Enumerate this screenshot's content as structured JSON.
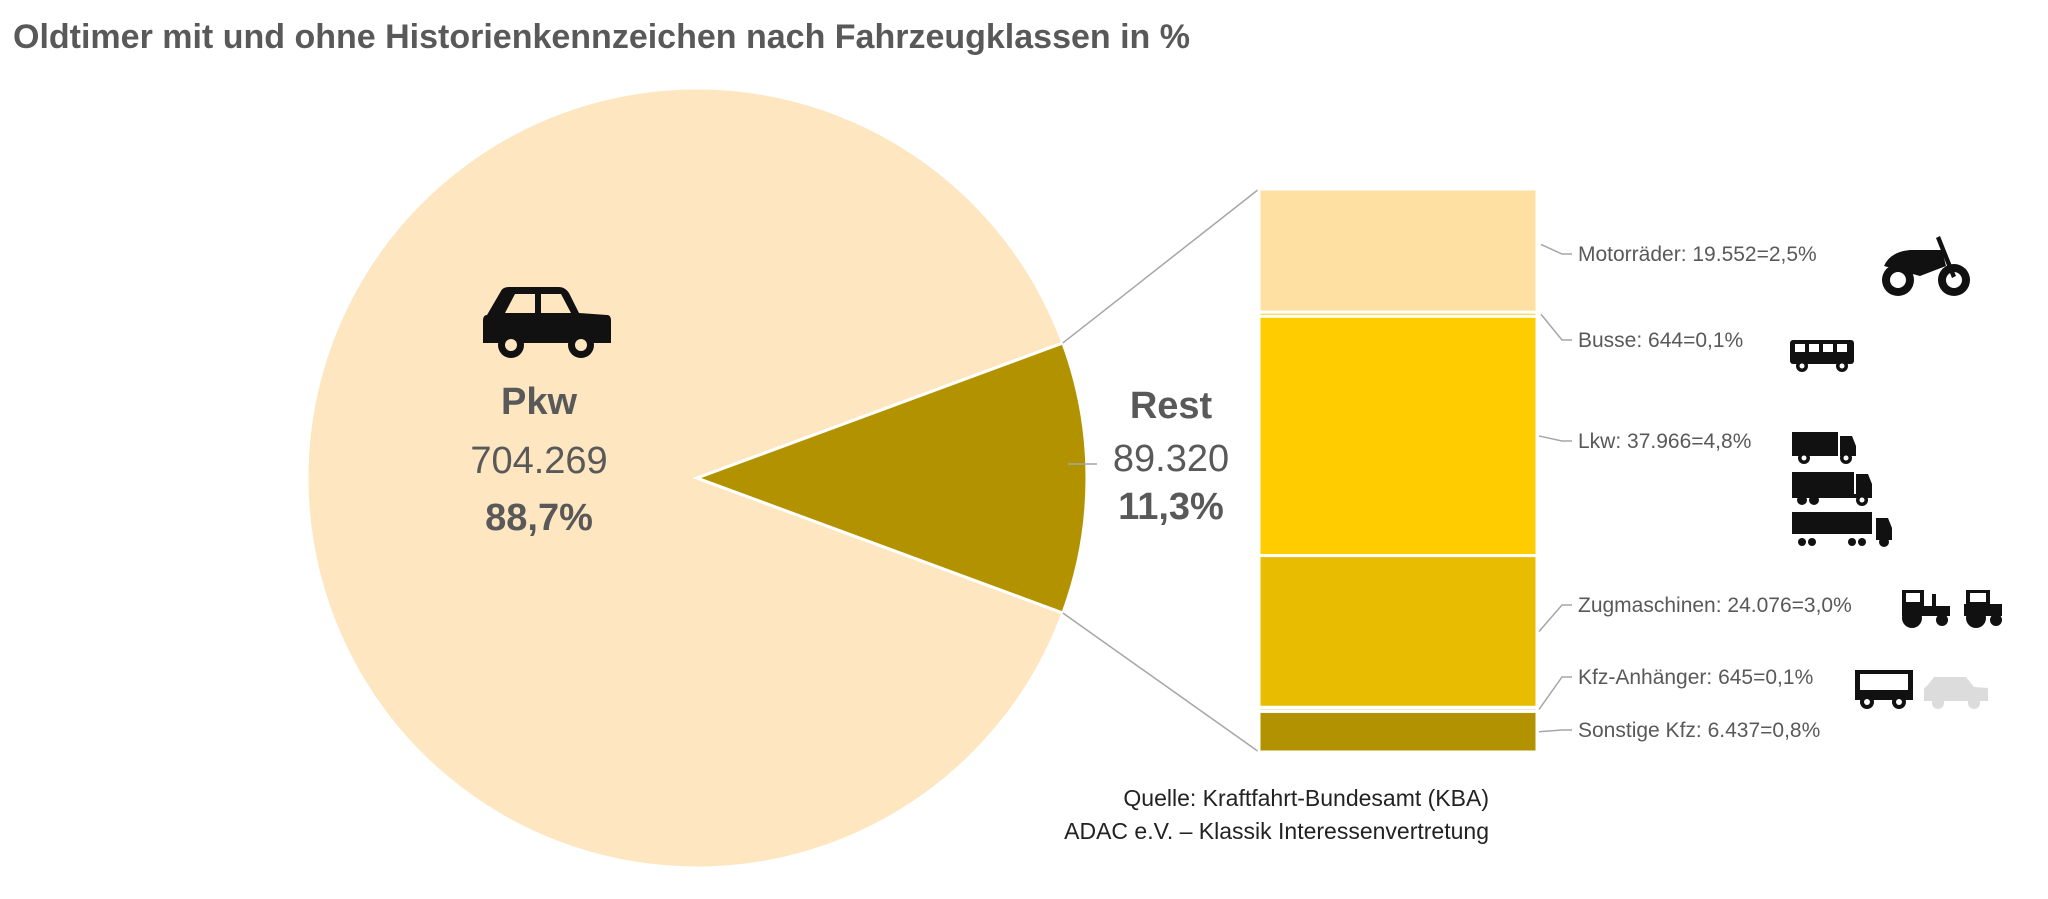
{
  "title": "Oldtimer mit und ohne Historienkennzeichen nach Fahrzeugklassen in %",
  "chart_data": {
    "type": "pie",
    "title": "Oldtimer mit und ohne Historienkennzeichen nach Fahrzeugklassen in %",
    "pie": [
      {
        "name": "Pkw",
        "value": 704269,
        "value_label": "704.269",
        "percent_label": "88,7%",
        "color": "#FDE6C0",
        "icon": "car-icon"
      },
      {
        "name": "Rest",
        "value": 89320,
        "value_label": "89.320",
        "percent_label": "11,3%",
        "color": "#B39200"
      }
    ],
    "breakdown_bar": {
      "of": "Rest",
      "segments": [
        {
          "name": "Motorräder",
          "value": 19552,
          "label": "Motorräder: 19.552=2,5%",
          "color": "#FDE0A2",
          "icons": [
            "motorcycle-icon"
          ]
        },
        {
          "name": "Busse",
          "value": 644,
          "label": "Busse: 644=0,1%",
          "color": "#FFCC00",
          "icons": [
            "bus-icon"
          ]
        },
        {
          "name": "Lkw",
          "value": 37966,
          "label": "Lkw: 37.966=4,8%",
          "color": "#FFCC00",
          "icons": [
            "truck-icon",
            "truck-large-icon",
            "semi-truck-icon"
          ]
        },
        {
          "name": "Zugmaschinen",
          "value": 24076,
          "label": "Zugmaschinen: 24.076=3,0%",
          "color": "#E8BC00",
          "icons": [
            "tractor-icon",
            "tractor-icon"
          ]
        },
        {
          "name": "Kfz-Anhänger",
          "value": 645,
          "label": "Kfz-Anhänger: 645=0,1%",
          "color": "#E8E8D0",
          "icons": [
            "trailer-icon",
            "car-icon"
          ]
        },
        {
          "name": "Sonstige Kfz",
          "value": 6437,
          "label": "Sonstige Kfz: 6.437=0,8%",
          "color": "#B39200",
          "icons": []
        }
      ]
    }
  },
  "source": {
    "line1": "Quelle: Kraftfahrt-Bundesamt (KBA)",
    "line2": "ADAC e.V. – Klassik Interessenvertretung"
  }
}
